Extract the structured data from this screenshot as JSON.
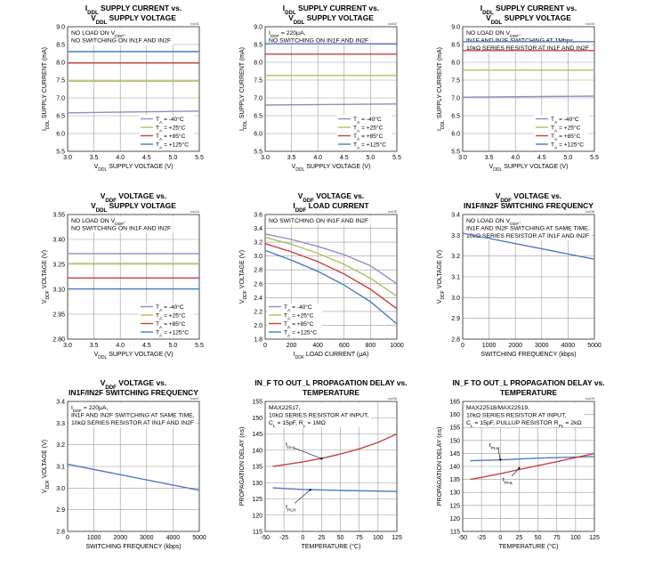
{
  "chart_data": [
    {
      "type": "line",
      "title_lines": [
        "IDDL SUPPLY CURRENT vs.",
        "VDDL SUPPLY VOLTAGE"
      ],
      "code": "toc01",
      "note_lines": [
        "NO LOAD ON VDDF,",
        "NO SWITCHING ON IN1F AND IN2F"
      ],
      "xlabel": "VDDL SUPPLY VOLTAGE (V)",
      "ylabel": "IDDL SUPPLY CURRENT (mA)",
      "xlim": [
        3.0,
        5.5
      ],
      "ylim": [
        5.5,
        9.0
      ],
      "xticks": [
        "3.0",
        "3.5",
        "4.0",
        "4.5",
        "5.0",
        "5.5"
      ],
      "yticks": [
        "5.5",
        "6.0",
        "6.5",
        "7.0",
        "7.5",
        "8.0",
        "8.5",
        "9.0"
      ],
      "legend_position": "bottom-right",
      "series": [
        {
          "name": "TA = -40°C",
          "color": "#9b86c2",
          "x": [
            3.0,
            5.5
          ],
          "y": [
            6.58,
            6.63
          ]
        },
        {
          "name": "TA = +25°C",
          "color": "#a9c45a",
          "x": [
            3.0,
            5.5
          ],
          "y": [
            7.47,
            7.47
          ]
        },
        {
          "name": "TA = +85°C",
          "color": "#c8413f",
          "x": [
            3.0,
            5.5
          ],
          "y": [
            7.98,
            7.98
          ]
        },
        {
          "name": "TA = +125°C",
          "color": "#4a7dbf",
          "x": [
            3.0,
            5.5
          ],
          "y": [
            8.3,
            8.3
          ]
        }
      ]
    },
    {
      "type": "line",
      "title_lines": [
        "IDDL SUPPLY CURRENT vs.",
        "VDDL SUPPLY VOLTAGE"
      ],
      "code": "toc02",
      "note_lines": [
        "IDDF = 220μA,",
        "NO SWITCHING ON IN1F AND IN2F"
      ],
      "xlabel": "VDDL SUPPLY VOLTAGE (V)",
      "ylabel": "IDDL SUPPLY CURRENT (mA)",
      "xlim": [
        3.0,
        5.5
      ],
      "ylim": [
        5.5,
        9.0
      ],
      "xticks": [
        "3.0",
        "3.5",
        "4.0",
        "4.5",
        "5.0",
        "5.5"
      ],
      "yticks": [
        "5.5",
        "6.0",
        "6.5",
        "7.0",
        "7.5",
        "8.0",
        "8.5",
        "9.0"
      ],
      "legend_position": "bottom-right",
      "series": [
        {
          "name": "TA = -40°C",
          "color": "#9b86c2",
          "x": [
            3.0,
            5.5
          ],
          "y": [
            6.8,
            6.83
          ]
        },
        {
          "name": "TA = +25°C",
          "color": "#a9c45a",
          "x": [
            3.0,
            5.5
          ],
          "y": [
            7.63,
            7.63
          ]
        },
        {
          "name": "TA = +85°C",
          "color": "#c8413f",
          "x": [
            3.0,
            5.5
          ],
          "y": [
            8.23,
            8.23
          ]
        },
        {
          "name": "TA = +125°C",
          "color": "#4a7dbf",
          "x": [
            3.0,
            5.5
          ],
          "y": [
            8.52,
            8.52
          ]
        }
      ]
    },
    {
      "type": "line",
      "title_lines": [
        "IDDL SUPPLY CURRENT vs.",
        "VDDL SUPPLY VOLTAGE"
      ],
      "code": "toc03",
      "note_lines": [
        "NO LOAD ON VDDF,",
        "IN1F AND IN2F SWITCHING AT 1Mbps,",
        "10kΩ SERIES RESISTOR AT IN1F AND IN2F"
      ],
      "xlabel": "VDDL SUPPLY VOLTAGE (V)",
      "ylabel": "IDDL SUPPLY CURRENT (mA)",
      "xlim": [
        3.0,
        5.5
      ],
      "ylim": [
        5.5,
        9.0
      ],
      "xticks": [
        "3.0",
        "3.5",
        "4.0",
        "4.5",
        "5.0",
        "5.5"
      ],
      "yticks": [
        "5.5",
        "6.0",
        "6.5",
        "7.0",
        "7.5",
        "8.0",
        "8.5",
        "9.0"
      ],
      "legend_position": "bottom-right",
      "series": [
        {
          "name": "TA = -40°C",
          "color": "#9b86c2",
          "x": [
            3.0,
            5.5
          ],
          "y": [
            7.02,
            7.05
          ]
        },
        {
          "name": "TA = +25°C",
          "color": "#a9c45a",
          "x": [
            3.0,
            5.5
          ],
          "y": [
            7.78,
            7.78
          ]
        },
        {
          "name": "TA = +85°C",
          "color": "#c8413f",
          "x": [
            3.0,
            5.5
          ],
          "y": [
            8.33,
            8.33
          ]
        },
        {
          "name": "TA = +125°C",
          "color": "#4a7dbf",
          "x": [
            3.0,
            5.5
          ],
          "y": [
            8.58,
            8.58
          ]
        }
      ]
    },
    {
      "type": "line",
      "title_lines": [
        "VDDF VOLTAGE vs.",
        "VDDL SUPPLY VOLTAGE"
      ],
      "code": "toc04",
      "note_lines": [
        "NO LOAD ON VDDF,",
        "NO SWITCHING ON IN1F AND IN2F"
      ],
      "xlabel": "VDDL SUPPLY VOLTAGE (V)",
      "ylabel": "VDDF VOLTAGE (V)",
      "xlim": [
        3.0,
        5.5
      ],
      "ylim": [
        2.8,
        3.55
      ],
      "xticks": [
        "3.0",
        "3.5",
        "4.0",
        "4.5",
        "5.0",
        "5.5"
      ],
      "yticks": [
        "2.80",
        "2.95",
        "3.10",
        "3.25",
        "3.40",
        "3.55"
      ],
      "legend_position": "bottom-right",
      "series": [
        {
          "name": "TA = -40°C",
          "color": "#9b86c2",
          "x": [
            3.0,
            5.5
          ],
          "y": [
            3.315,
            3.315
          ]
        },
        {
          "name": "TA = +25°C",
          "color": "#a9c45a",
          "x": [
            3.0,
            5.5
          ],
          "y": [
            3.255,
            3.255
          ]
        },
        {
          "name": "TA = +85°C",
          "color": "#c8413f",
          "x": [
            3.0,
            5.5
          ],
          "y": [
            3.168,
            3.168
          ]
        },
        {
          "name": "TA = +125°C",
          "color": "#4a7dbf",
          "x": [
            3.0,
            5.5
          ],
          "y": [
            3.102,
            3.102
          ]
        }
      ]
    },
    {
      "type": "line",
      "title_lines": [
        "VDDF VOLTAGE vs.",
        "IDDF LOAD CURRENT"
      ],
      "code": "toc05",
      "note_lines": [
        "NO SWITCHING ON IN1F AND IN2F"
      ],
      "xlabel": "IDDF LOAD CURRENT (μA)",
      "ylabel": "VDDF VOLTAGE (V)",
      "xlim": [
        0,
        1000
      ],
      "ylim": [
        1.8,
        3.6
      ],
      "xticks": [
        "0",
        "200",
        "400",
        "600",
        "800",
        "1000"
      ],
      "yticks": [
        "1.8",
        "2.0",
        "2.2",
        "2.4",
        "2.6",
        "2.8",
        "3.0",
        "3.2",
        "3.4",
        "3.6"
      ],
      "legend_position": "bottom-left",
      "series": [
        {
          "name": "TA = -40°C",
          "color": "#9b86c2",
          "x": [
            0,
            200,
            400,
            600,
            800,
            1000
          ],
          "y": [
            3.32,
            3.24,
            3.14,
            3.02,
            2.86,
            2.6
          ]
        },
        {
          "name": "TA = +25°C",
          "color": "#a9c45a",
          "x": [
            0,
            200,
            400,
            600,
            800,
            1000
          ],
          "y": [
            3.27,
            3.17,
            3.04,
            2.88,
            2.68,
            2.42
          ]
        },
        {
          "name": "TA = +85°C",
          "color": "#c8413f",
          "x": [
            0,
            200,
            400,
            600,
            800,
            1000
          ],
          "y": [
            3.18,
            3.06,
            2.92,
            2.74,
            2.52,
            2.24
          ]
        },
        {
          "name": "TA = +125°C",
          "color": "#4a7dbf",
          "x": [
            0,
            200,
            400,
            600,
            800,
            1000
          ],
          "y": [
            3.08,
            2.94,
            2.78,
            2.58,
            2.34,
            2.02
          ]
        }
      ]
    },
    {
      "type": "line",
      "title_lines": [
        "VDDF VOLTAGE vs.",
        "IN1F/IN2F SWITCHING FREQUENCY"
      ],
      "code": "toc06",
      "note_lines": [
        "NO LOAD ON VDDF,",
        "IN1F AND IN2F SWITCHING AT SAME TIME,",
        "10kΩ SERIES RESISTOR AT IN1F AND IN2F"
      ],
      "xlabel": "SWITCHING FREQUENCY (kbps)",
      "ylabel": "VDDF VOLTAGE (V)",
      "xlim": [
        0,
        5000
      ],
      "ylim": [
        2.8,
        3.4
      ],
      "xticks": [
        "0",
        "1000",
        "2000",
        "3000",
        "4000",
        "5000"
      ],
      "yticks": [
        "2.8",
        "2.9",
        "3.0",
        "3.1",
        "3.2",
        "3.3",
        "3.4"
      ],
      "legend_position": "none",
      "series": [
        {
          "color": "#4a7dbf",
          "x": [
            0,
            5000
          ],
          "y": [
            3.31,
            3.185
          ]
        }
      ]
    },
    {
      "type": "line",
      "title_lines": [
        "VDDF VOLTAGE vs.",
        "IN1F/IN2F SWITCHING FREQUENCY"
      ],
      "code": "toc07",
      "note_lines": [
        "IDDF = 220μA,",
        "IN1F AND IN2F SWITCHING AT SAME TIME,",
        "10kΩ SERIES RESISTOR AT IN1F AND IN2F"
      ],
      "xlabel": "SWITCHING FREQUENCY (kbps)",
      "ylabel": "VDDF VOLTAGE (V)",
      "xlim": [
        0,
        5000
      ],
      "ylim": [
        2.8,
        3.4
      ],
      "xticks": [
        "0",
        "1000",
        "2000",
        "3000",
        "4000",
        "5000"
      ],
      "yticks": [
        "2.8",
        "2.9",
        "3.0",
        "3.1",
        "3.2",
        "3.3",
        "3.4"
      ],
      "legend_position": "none",
      "series": [
        {
          "color": "#4a7dbf",
          "x": [
            0,
            5000
          ],
          "y": [
            3.11,
            2.99
          ]
        }
      ]
    },
    {
      "type": "line",
      "title_lines": [
        "IN_F TO OUT_L PROPAGATION DELAY vs.",
        "TEMPERATURE"
      ],
      "code": "toc08",
      "note_lines": [
        "MAX22517,",
        "10kΩ SERIES RESISTOR AT INPUT,",
        "CL = 15pF, RL = 1MΩ"
      ],
      "xlabel": "TEMPERATURE (°C)",
      "ylabel": "PROPAGATION DELAY (ns)",
      "xlim": [
        -50,
        125
      ],
      "ylim": [
        115,
        155
      ],
      "xticks": [
        "-50",
        "-25",
        "0",
        "25",
        "50",
        "75",
        "100",
        "125"
      ],
      "yticks": [
        "115",
        "120",
        "125",
        "130",
        "135",
        "140",
        "145",
        "150",
        "155"
      ],
      "legend_position": "none",
      "annotations": [
        {
          "text": "tPHL",
          "x": -18,
          "y": 141.2,
          "target_x": 25,
          "target_y": 137.4
        },
        {
          "text": "tPLH",
          "x": -18,
          "y": 122.0,
          "target_x": 10,
          "target_y": 127.8
        }
      ],
      "series": [
        {
          "color": "#c8413f",
          "x": [
            -40,
            -25,
            0,
            25,
            50,
            75,
            100,
            125
          ],
          "y": [
            135.0,
            135.5,
            136.4,
            137.5,
            138.8,
            140.4,
            142.4,
            145.0
          ]
        },
        {
          "color": "#4a7dbf",
          "x": [
            -40,
            0,
            50,
            125
          ],
          "y": [
            128.4,
            127.9,
            127.6,
            127.3
          ]
        }
      ]
    },
    {
      "type": "line",
      "title_lines": [
        "IN_F TO OUT_L PROPAGATION DELAY vs.",
        "TEMPERATURE"
      ],
      "code": "toc09",
      "note_lines": [
        "MAX22518/MAX22519,",
        "10kΩ SERIES RESISTOR AT INPUT,",
        "CL = 15pF, PULLUP RESISTOR RPL = 2kΩ"
      ],
      "xlabel": "TEMPERATURE (°C)",
      "ylabel": "PROPAGATION DELAY (ns)",
      "xlim": [
        -50,
        125
      ],
      "ylim": [
        115,
        165
      ],
      "xticks": [
        "-50",
        "-25",
        "0",
        "25",
        "50",
        "75",
        "100",
        "125"
      ],
      "yticks": [
        "115",
        "120",
        "125",
        "130",
        "135",
        "140",
        "145",
        "150",
        "155",
        "160",
        "165"
      ],
      "legend_position": "none",
      "annotations": [
        {
          "text": "tPLH",
          "x": -10,
          "y": 147.5,
          "target_x": 0,
          "target_y": 142.6
        },
        {
          "text": "tPHL",
          "x": 8,
          "y": 134.2,
          "target_x": 25,
          "target_y": 139.3
        }
      ],
      "series": [
        {
          "color": "#4a7dbf",
          "x": [
            -40,
            0,
            50,
            125
          ],
          "y": [
            142.2,
            142.5,
            143.2,
            143.8
          ]
        },
        {
          "color": "#c8413f",
          "x": [
            -40,
            -25,
            0,
            25,
            50,
            75,
            100,
            125
          ],
          "y": [
            135.0,
            135.8,
            137.2,
            138.8,
            140.3,
            141.8,
            143.4,
            145.0
          ]
        }
      ]
    }
  ]
}
